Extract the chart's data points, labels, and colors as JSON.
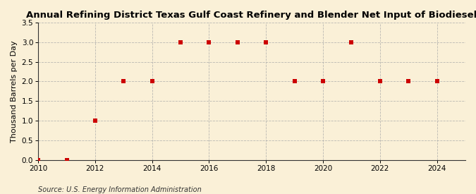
{
  "title": "Annual Refining District Texas Gulf Coast Refinery and Blender Net Input of Biodiesel",
  "ylabel": "Thousand Barrels per Day",
  "source": "Source: U.S. Energy Information Administration",
  "x": [
    2010,
    2011,
    2012,
    2013,
    2014,
    2015,
    2016,
    2017,
    2018,
    2019,
    2020,
    2021,
    2022,
    2023,
    2024
  ],
  "y": [
    0.0,
    0.0,
    1.0,
    2.0,
    2.0,
    3.0,
    3.0,
    3.0,
    3.0,
    2.0,
    2.0,
    3.0,
    2.0,
    2.0,
    2.0
  ],
  "xlim": [
    2010,
    2025
  ],
  "ylim": [
    0.0,
    3.5
  ],
  "yticks": [
    0.0,
    0.5,
    1.0,
    1.5,
    2.0,
    2.5,
    3.0,
    3.5
  ],
  "xticks": [
    2010,
    2012,
    2014,
    2016,
    2018,
    2020,
    2022,
    2024
  ],
  "marker_color": "#cc0000",
  "marker": "s",
  "marker_size": 5,
  "background_color": "#faf0d7",
  "grid_color": "#aaaaaa",
  "spine_color": "#333333",
  "title_fontsize": 9.5,
  "label_fontsize": 8,
  "tick_fontsize": 7.5,
  "source_fontsize": 7
}
